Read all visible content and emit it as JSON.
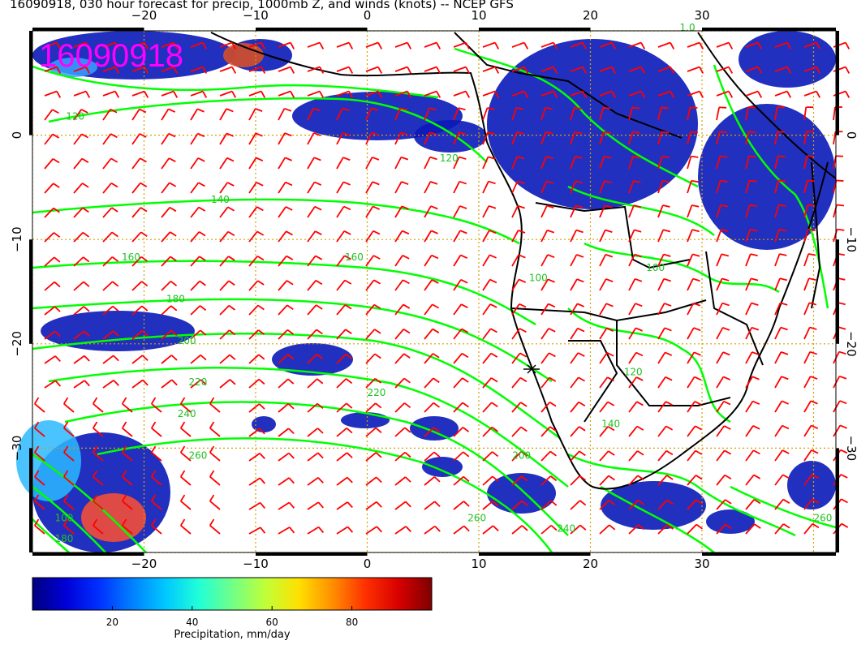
{
  "title": "16090918, 030 hour forecast for precip, 1000mb Z, and winds (knots) -- NCEP GFS",
  "stamp": "16090918",
  "stamp_color": "#ff00ff",
  "lon_ticks": [
    {
      "value": -20,
      "label": "−20"
    },
    {
      "value": -10,
      "label": "−10"
    },
    {
      "value": 0,
      "label": "0"
    },
    {
      "value": 10,
      "label": "10"
    },
    {
      "value": 20,
      "label": "20"
    },
    {
      "value": 30,
      "label": "30"
    }
  ],
  "lat_ticks": [
    {
      "value": 0,
      "label": "0"
    },
    {
      "value": -10,
      "label": "−10"
    },
    {
      "value": -20,
      "label": "−20"
    },
    {
      "value": -30,
      "label": "−30"
    }
  ],
  "extent": {
    "lon_min": -30,
    "lon_max": 42,
    "lat_min": -40,
    "lat_max": 10
  },
  "contour_labels": [
    {
      "text": "120",
      "lon": -27,
      "lat": 1.5
    },
    {
      "text": "140",
      "lon": -14,
      "lat": -6.5
    },
    {
      "text": "160",
      "lon": -22,
      "lat": -12
    },
    {
      "text": "180",
      "lon": -18,
      "lat": -16
    },
    {
      "text": "160",
      "lon": -2,
      "lat": -12
    },
    {
      "text": "200",
      "lon": -17,
      "lat": -20
    },
    {
      "text": "220",
      "lon": -16,
      "lat": -24
    },
    {
      "text": "240",
      "lon": -17,
      "lat": -27
    },
    {
      "text": "260",
      "lon": -16,
      "lat": -31
    },
    {
      "text": "220",
      "lon": 0,
      "lat": -25
    },
    {
      "text": "120",
      "lon": 6.5,
      "lat": -2.5
    },
    {
      "text": "100",
      "lon": 14.5,
      "lat": -14
    },
    {
      "text": "100",
      "lon": 25,
      "lat": -13
    },
    {
      "text": "120",
      "lon": 23,
      "lat": -23
    },
    {
      "text": "140",
      "lon": 21,
      "lat": -28
    },
    {
      "text": "200",
      "lon": 13,
      "lat": -31
    },
    {
      "text": "260",
      "lon": 9,
      "lat": -37
    },
    {
      "text": "240",
      "lon": 17,
      "lat": -38
    },
    {
      "text": "260",
      "lon": 40,
      "lat": -37
    },
    {
      "text": "1.0",
      "lon": 28,
      "lat": 10
    },
    {
      "text": "100",
      "lon": -28,
      "lat": -37
    },
    {
      "text": "180",
      "lon": -28,
      "lat": -39
    }
  ],
  "colorbar": {
    "label": "Precipitation, mm/day",
    "min": 0,
    "max": 100,
    "ticks": [
      {
        "value": 20,
        "label": "20"
      },
      {
        "value": 40,
        "label": "40"
      },
      {
        "value": 60,
        "label": "60"
      },
      {
        "value": 80,
        "label": "80"
      }
    ],
    "colors": [
      "#00007f",
      "#0000d8",
      "#0030ff",
      "#0080ff",
      "#00c8ff",
      "#20ffd8",
      "#70ff88",
      "#c0ff38",
      "#ffe000",
      "#ff9000",
      "#ff3000",
      "#d80000",
      "#7f0000"
    ]
  },
  "colors": {
    "contour": "#00ff00",
    "wind_barb": "#ff0000",
    "grid": "#d4a000",
    "coast": "#000000"
  }
}
